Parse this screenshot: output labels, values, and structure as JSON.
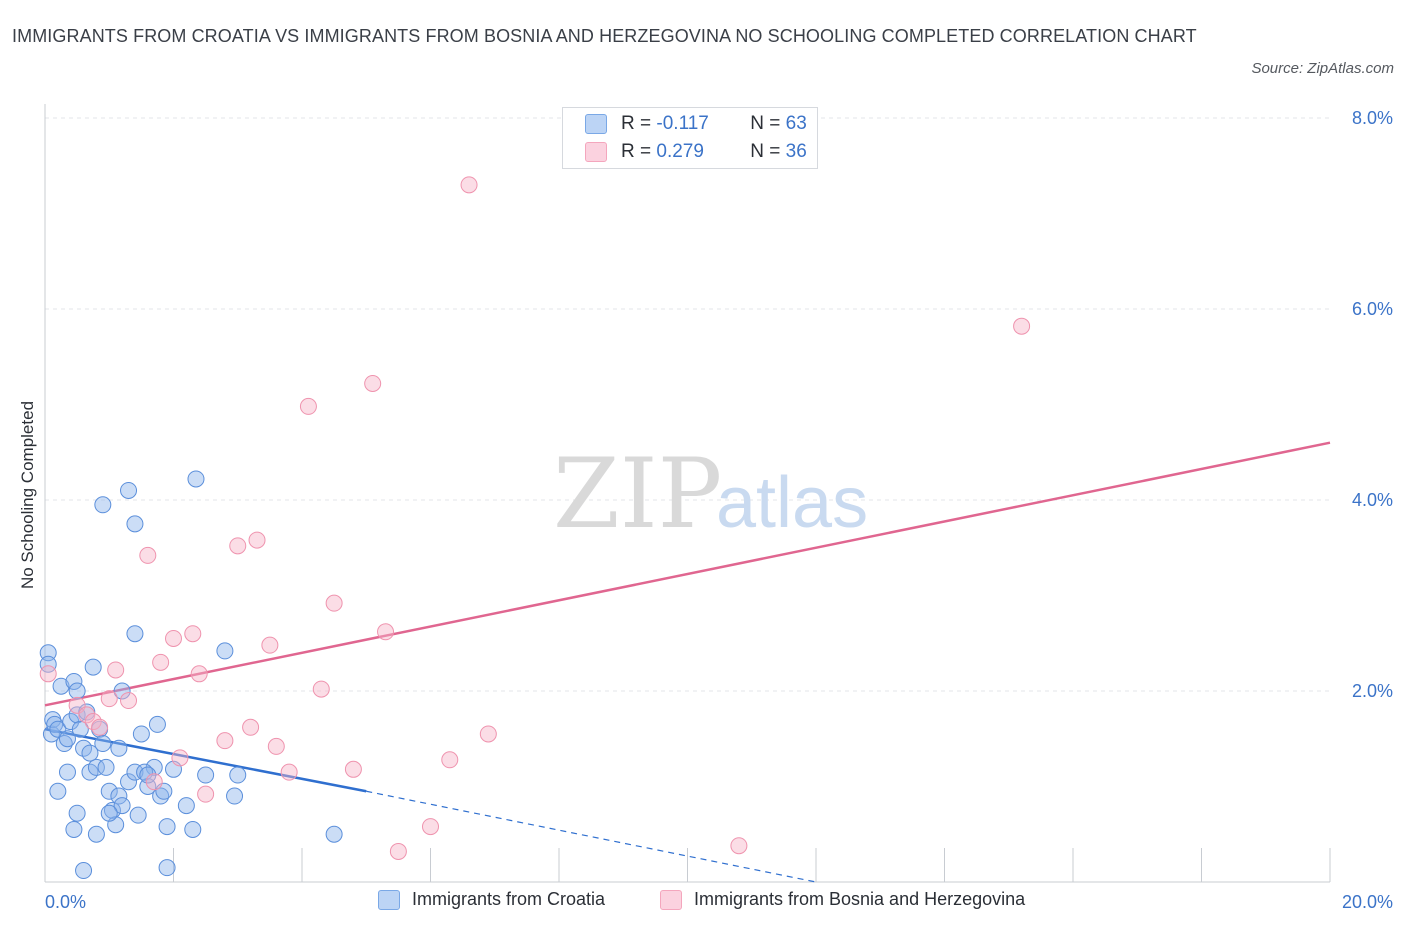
{
  "title": "IMMIGRANTS FROM CROATIA VS IMMIGRANTS FROM BOSNIA AND HERZEGOVINA NO SCHOOLING COMPLETED CORRELATION CHART",
  "source": "Source: ZipAtlas.com",
  "watermark": {
    "zip": "ZIP",
    "atlas": "atlas"
  },
  "colors": {
    "blue": "#7aa8e6",
    "blue_line": "#2f6fcf",
    "pink": "#f4a6bd",
    "pink_line": "#e06690",
    "tick": "#3b73c8"
  },
  "legend": {
    "rows": [
      {
        "r_label": "R =",
        "r_value": "-0.117",
        "n_label": "N =",
        "n_value": "63",
        "color": "#7aa8e6"
      },
      {
        "r_label": "R =",
        "r_value": "0.279",
        "n_label": "N =",
        "n_value": "36",
        "color": "#f4a6bd"
      }
    ]
  },
  "chart_data": {
    "type": "scatter",
    "title": "IMMIGRANTS FROM CROATIA VS IMMIGRANTS FROM BOSNIA AND HERZEGOVINA NO SCHOOLING COMPLETED CORRELATION CHART",
    "xlabel": "",
    "ylabel": "No Schooling Completed",
    "xlim": [
      0,
      20
    ],
    "ylim": [
      0,
      8
    ],
    "x_ticks": [
      "0.0%",
      "20.0%"
    ],
    "y_ticks": [
      "2.0%",
      "4.0%",
      "6.0%",
      "8.0%"
    ],
    "y_tick_values": [
      2,
      4,
      6,
      8
    ],
    "grid": true,
    "legend_position": "top-center",
    "series": [
      {
        "name": "Immigrants from Croatia",
        "color": "#7aa8e6",
        "trend": {
          "x": [
            0,
            5.0
          ],
          "y": [
            1.6,
            0.95
          ],
          "extend_to_x": 12.0,
          "extend_to_y": 0.0
        },
        "points": [
          [
            0.05,
            2.4
          ],
          [
            0.05,
            2.28
          ],
          [
            0.1,
            1.55
          ],
          [
            0.12,
            1.7
          ],
          [
            0.15,
            1.65
          ],
          [
            0.2,
            1.6
          ],
          [
            0.25,
            2.05
          ],
          [
            0.3,
            1.45
          ],
          [
            0.35,
            1.5
          ],
          [
            0.4,
            1.68
          ],
          [
            0.45,
            2.1
          ],
          [
            0.5,
            1.75
          ],
          [
            0.55,
            1.6
          ],
          [
            0.6,
            1.4
          ],
          [
            0.5,
            2.0
          ],
          [
            0.65,
            1.78
          ],
          [
            0.7,
            1.15
          ],
          [
            0.75,
            2.25
          ],
          [
            0.8,
            1.2
          ],
          [
            0.85,
            1.6
          ],
          [
            0.9,
            1.45
          ],
          [
            0.95,
            1.2
          ],
          [
            1.0,
            0.95
          ],
          [
            1.05,
            0.75
          ],
          [
            1.1,
            0.6
          ],
          [
            1.15,
            0.9
          ],
          [
            1.2,
            0.8
          ],
          [
            1.0,
            0.72
          ],
          [
            1.15,
            1.4
          ],
          [
            1.3,
            1.05
          ],
          [
            1.4,
            1.15
          ],
          [
            1.45,
            0.7
          ],
          [
            1.5,
            1.55
          ],
          [
            1.6,
            1.0
          ],
          [
            1.7,
            1.2
          ],
          [
            1.75,
            1.65
          ],
          [
            1.8,
            0.9
          ],
          [
            1.85,
            0.95
          ],
          [
            1.9,
            0.58
          ],
          [
            2.0,
            1.18
          ],
          [
            2.2,
            0.8
          ],
          [
            2.3,
            0.55
          ],
          [
            2.5,
            1.12
          ],
          [
            0.2,
            0.95
          ],
          [
            0.45,
            0.55
          ],
          [
            0.8,
            0.5
          ],
          [
            0.6,
            0.12
          ],
          [
            1.4,
            2.6
          ],
          [
            1.2,
            2.0
          ],
          [
            1.3,
            4.1
          ],
          [
            1.4,
            3.75
          ],
          [
            0.9,
            3.95
          ],
          [
            2.35,
            4.22
          ],
          [
            2.8,
            2.42
          ],
          [
            1.55,
            1.15
          ],
          [
            0.7,
            1.35
          ],
          [
            3.0,
            1.12
          ],
          [
            0.35,
            1.15
          ],
          [
            2.95,
            0.9
          ],
          [
            4.5,
            0.5
          ],
          [
            0.5,
            0.72
          ],
          [
            1.6,
            1.12
          ],
          [
            1.9,
            0.15
          ]
        ]
      },
      {
        "name": "Immigrants from Bosnia and Herzegovina",
        "color": "#f4a6bd",
        "trend": {
          "x": [
            0,
            20
          ],
          "y": [
            1.85,
            4.6
          ]
        },
        "points": [
          [
            0.05,
            2.18
          ],
          [
            0.5,
            1.85
          ],
          [
            0.65,
            1.75
          ],
          [
            0.75,
            1.68
          ],
          [
            0.85,
            1.62
          ],
          [
            1.0,
            1.92
          ],
          [
            1.1,
            2.22
          ],
          [
            1.3,
            1.9
          ],
          [
            1.6,
            3.42
          ],
          [
            1.7,
            1.05
          ],
          [
            1.8,
            2.3
          ],
          [
            2.0,
            2.55
          ],
          [
            2.1,
            1.3
          ],
          [
            2.3,
            2.6
          ],
          [
            2.4,
            2.18
          ],
          [
            2.5,
            0.92
          ],
          [
            2.8,
            1.48
          ],
          [
            3.0,
            3.52
          ],
          [
            3.2,
            1.62
          ],
          [
            3.3,
            3.58
          ],
          [
            3.5,
            2.48
          ],
          [
            3.6,
            1.42
          ],
          [
            3.8,
            1.15
          ],
          [
            4.1,
            4.98
          ],
          [
            4.3,
            2.02
          ],
          [
            4.5,
            2.92
          ],
          [
            4.8,
            1.18
          ],
          [
            5.1,
            5.22
          ],
          [
            5.3,
            2.62
          ],
          [
            5.5,
            0.32
          ],
          [
            6.0,
            0.58
          ],
          [
            6.3,
            1.28
          ],
          [
            6.6,
            7.3
          ],
          [
            6.9,
            1.55
          ],
          [
            10.8,
            0.38
          ],
          [
            15.2,
            5.82
          ]
        ]
      }
    ]
  }
}
